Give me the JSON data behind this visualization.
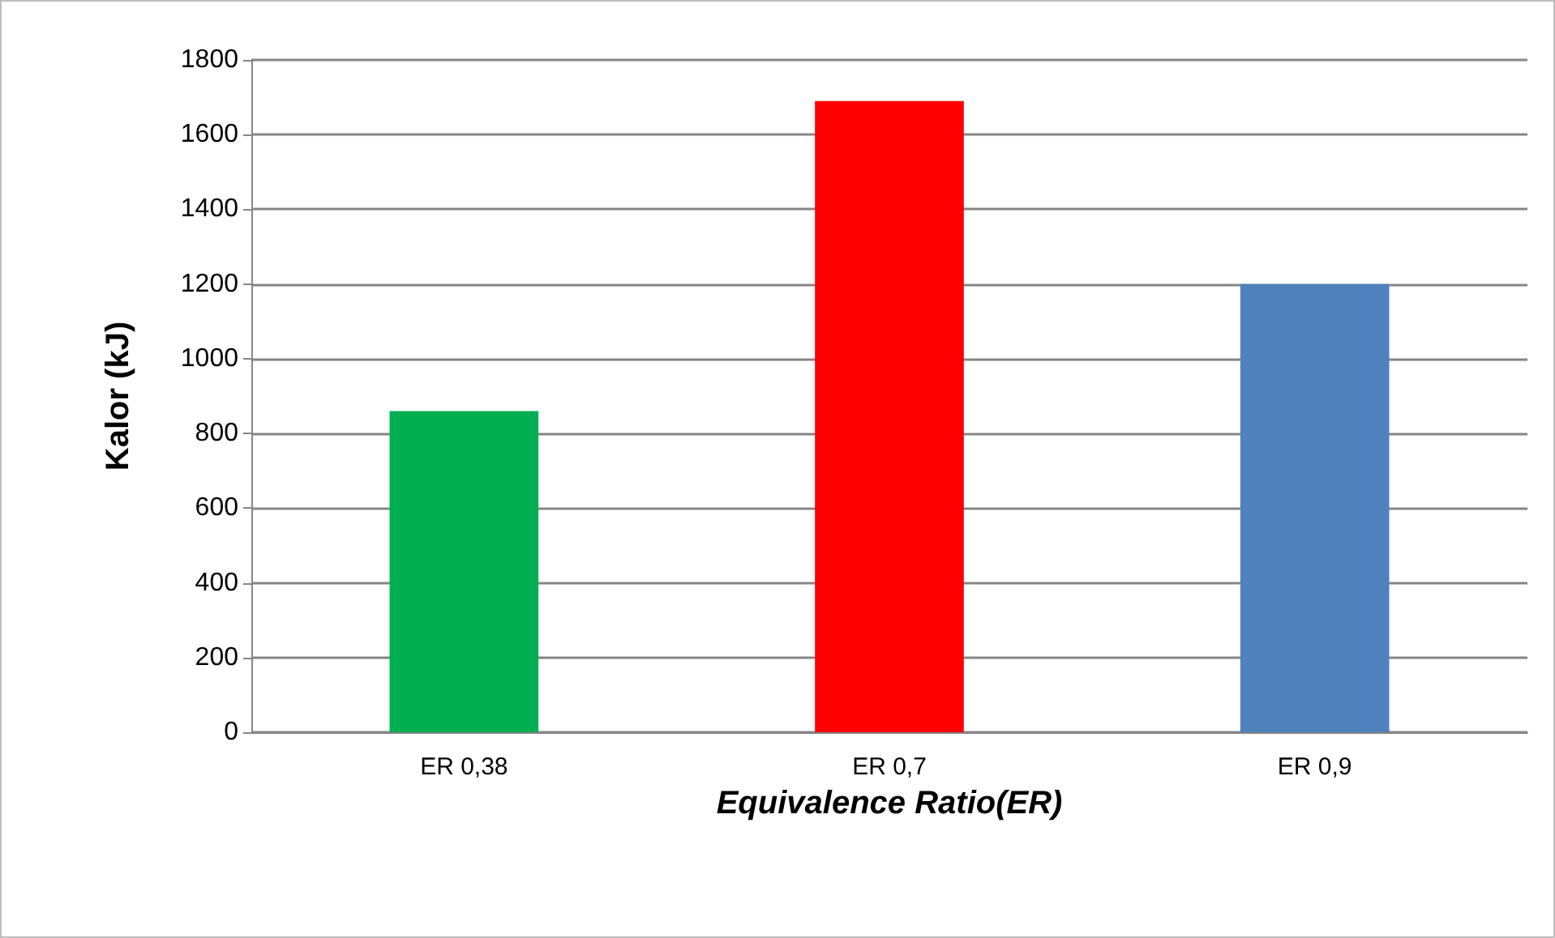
{
  "chart_data": {
    "type": "bar",
    "xlabel": "Equivalence Ratio(ER)",
    "ylabel": "Kalor (kJ)",
    "categories": [
      "ER 0,38",
      "ER 0,7",
      "ER 0,9"
    ],
    "values": [
      860,
      1690,
      1200
    ],
    "colors": [
      "#00b050",
      "#ff0000",
      "#4f81bd"
    ],
    "ylim": [
      0,
      1800
    ],
    "yticks": [
      0,
      200,
      400,
      600,
      800,
      1000,
      1200,
      1400,
      1600,
      1800
    ],
    "grid": "y"
  }
}
